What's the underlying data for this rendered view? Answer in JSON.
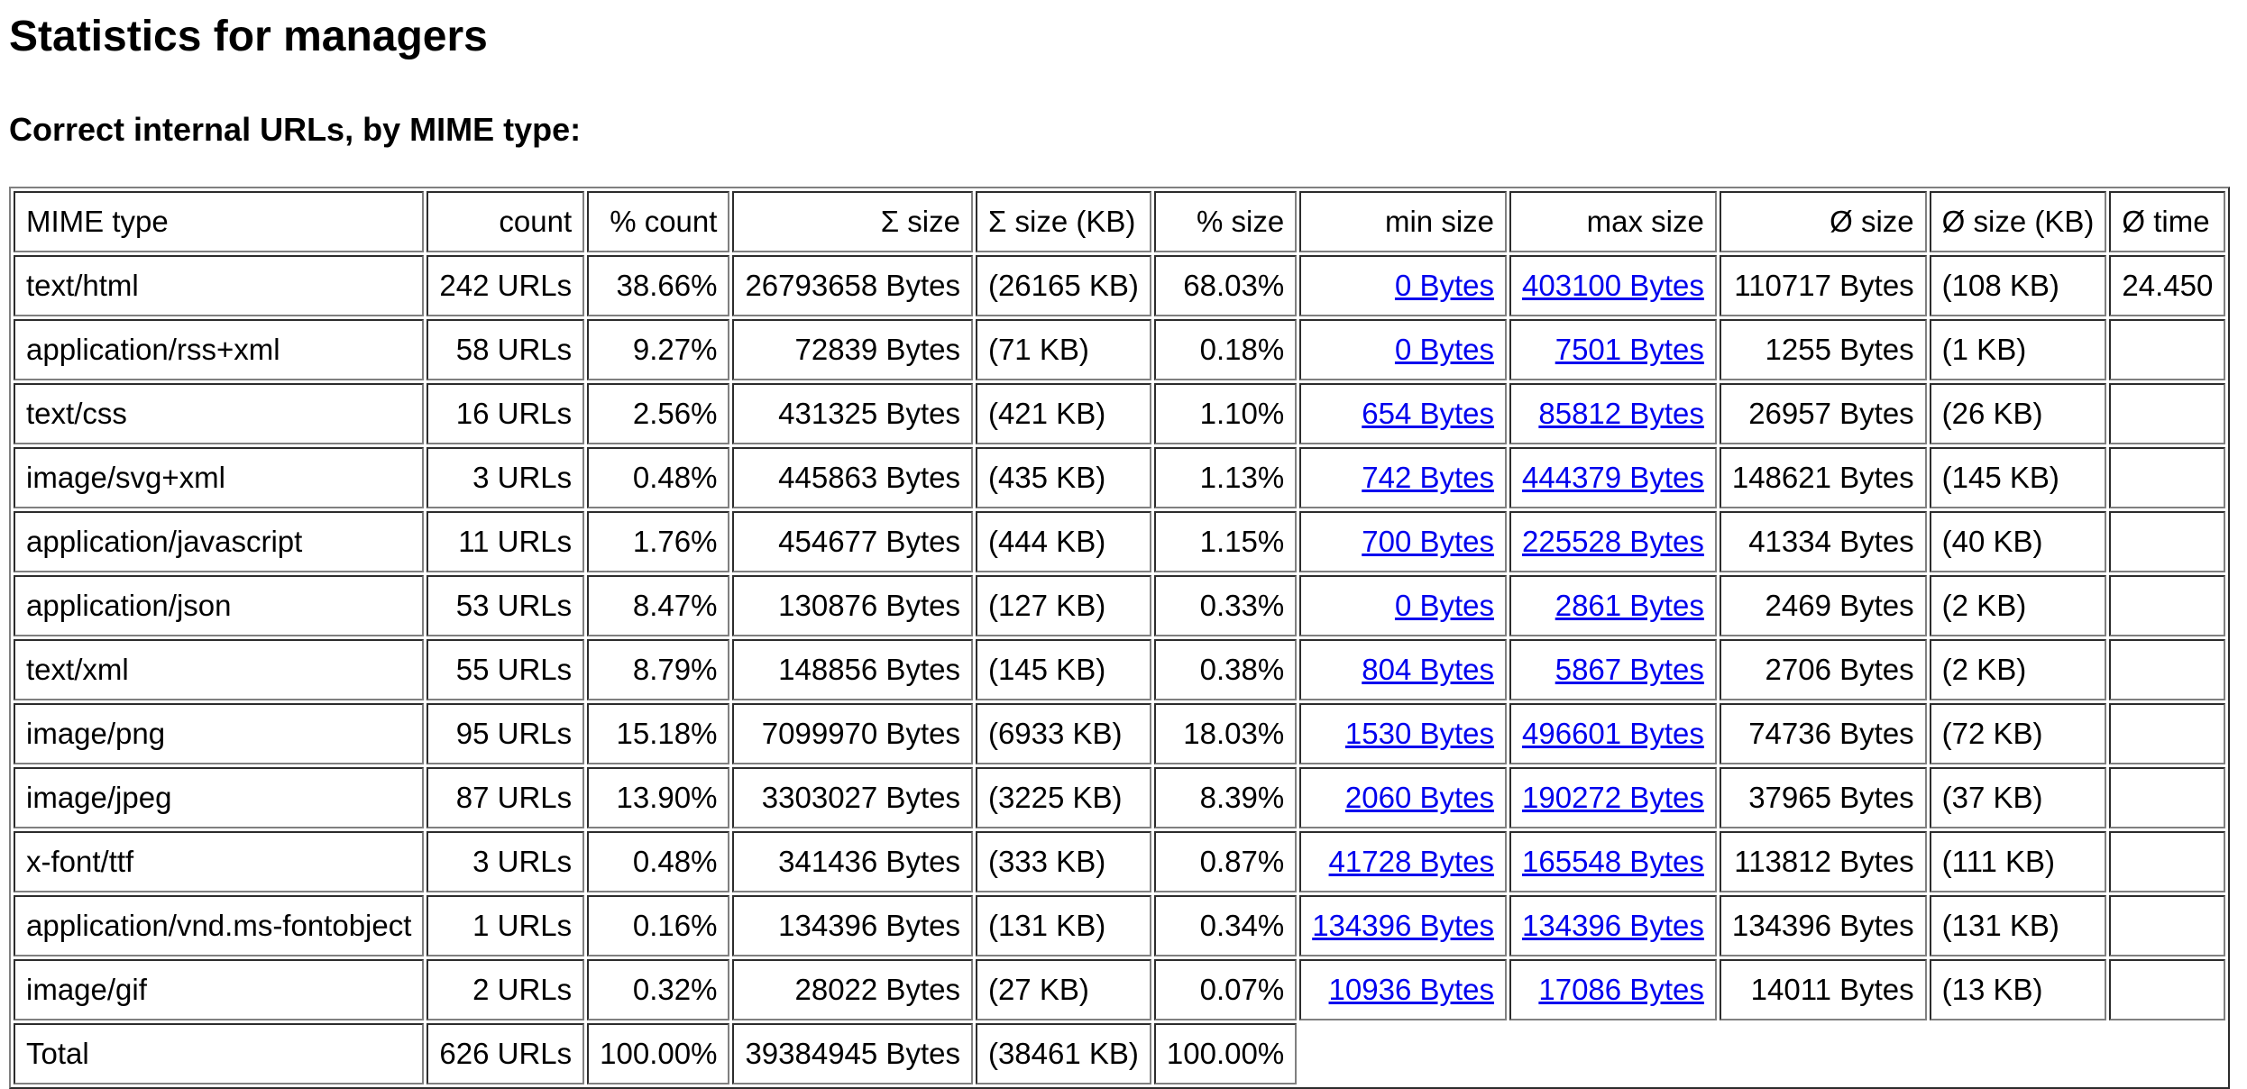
{
  "title": "Statistics for managers",
  "subtitle": "Correct internal URLs, by MIME type:",
  "table": {
    "headers": [
      "MIME type",
      "count",
      "% count",
      "Σ size",
      "Σ size (KB)",
      "% size",
      "min size",
      "max size",
      "Ø size",
      "Ø size (KB)",
      "Ø time"
    ],
    "rows": [
      {
        "mime": "text/html",
        "count": "242 URLs",
        "pct_count": "38.66%",
        "size": "26793658 Bytes",
        "size_kb": "(26165 KB)",
        "pct_size": "68.03%",
        "min": "0 Bytes",
        "max": "403100 Bytes",
        "avg": "110717 Bytes",
        "avg_kb": "(108 KB)",
        "time": "24.450"
      },
      {
        "mime": "application/rss+xml",
        "count": "58 URLs",
        "pct_count": "9.27%",
        "size": "72839 Bytes",
        "size_kb": "(71 KB)",
        "pct_size": "0.18%",
        "min": "0 Bytes",
        "max": "7501 Bytes",
        "avg": "1255 Bytes",
        "avg_kb": "(1 KB)",
        "time": ""
      },
      {
        "mime": "text/css",
        "count": "16 URLs",
        "pct_count": "2.56%",
        "size": "431325 Bytes",
        "size_kb": "(421 KB)",
        "pct_size": "1.10%",
        "min": "654 Bytes",
        "max": "85812 Bytes",
        "avg": "26957 Bytes",
        "avg_kb": "(26 KB)",
        "time": ""
      },
      {
        "mime": "image/svg+xml",
        "count": "3 URLs",
        "pct_count": "0.48%",
        "size": "445863 Bytes",
        "size_kb": "(435 KB)",
        "pct_size": "1.13%",
        "min": "742 Bytes",
        "max": "444379 Bytes",
        "avg": "148621 Bytes",
        "avg_kb": "(145 KB)",
        "time": ""
      },
      {
        "mime": "application/javascript",
        "count": "11 URLs",
        "pct_count": "1.76%",
        "size": "454677 Bytes",
        "size_kb": "(444 KB)",
        "pct_size": "1.15%",
        "min": "700 Bytes",
        "max": "225528 Bytes",
        "avg": "41334 Bytes",
        "avg_kb": "(40 KB)",
        "time": ""
      },
      {
        "mime": "application/json",
        "count": "53 URLs",
        "pct_count": "8.47%",
        "size": "130876 Bytes",
        "size_kb": "(127 KB)",
        "pct_size": "0.33%",
        "min": "0 Bytes",
        "max": "2861 Bytes",
        "avg": "2469 Bytes",
        "avg_kb": "(2 KB)",
        "time": ""
      },
      {
        "mime": "text/xml",
        "count": "55 URLs",
        "pct_count": "8.79%",
        "size": "148856 Bytes",
        "size_kb": "(145 KB)",
        "pct_size": "0.38%",
        "min": "804 Bytes",
        "max": "5867 Bytes",
        "avg": "2706 Bytes",
        "avg_kb": "(2 KB)",
        "time": ""
      },
      {
        "mime": "image/png",
        "count": "95 URLs",
        "pct_count": "15.18%",
        "size": "7099970 Bytes",
        "size_kb": "(6933 KB)",
        "pct_size": "18.03%",
        "min": "1530 Bytes",
        "max": "496601 Bytes",
        "avg": "74736 Bytes",
        "avg_kb": "(72 KB)",
        "time": ""
      },
      {
        "mime": "image/jpeg",
        "count": "87 URLs",
        "pct_count": "13.90%",
        "size": "3303027 Bytes",
        "size_kb": "(3225 KB)",
        "pct_size": "8.39%",
        "min": "2060 Bytes",
        "max": "190272 Bytes",
        "avg": "37965 Bytes",
        "avg_kb": "(37 KB)",
        "time": ""
      },
      {
        "mime": "x-font/ttf",
        "count": "3 URLs",
        "pct_count": "0.48%",
        "size": "341436 Bytes",
        "size_kb": "(333 KB)",
        "pct_size": "0.87%",
        "min": "41728 Bytes",
        "max": "165548 Bytes",
        "avg": "113812 Bytes",
        "avg_kb": "(111 KB)",
        "time": ""
      },
      {
        "mime": "application/vnd.ms-fontobject",
        "count": "1 URLs",
        "pct_count": "0.16%",
        "size": "134396 Bytes",
        "size_kb": "(131 KB)",
        "pct_size": "0.34%",
        "min": "134396 Bytes",
        "max": "134396 Bytes",
        "avg": "134396 Bytes",
        "avg_kb": "(131 KB)",
        "time": ""
      },
      {
        "mime": "image/gif",
        "count": "2 URLs",
        "pct_count": "0.32%",
        "size": "28022 Bytes",
        "size_kb": "(27 KB)",
        "pct_size": "0.07%",
        "min": "10936 Bytes",
        "max": "17086 Bytes",
        "avg": "14011 Bytes",
        "avg_kb": "(13 KB)",
        "time": ""
      }
    ],
    "total": {
      "label": "Total",
      "count": "626 URLs",
      "pct_count": "100.00%",
      "size": "39384945 Bytes",
      "size_kb": "(38461 KB)",
      "pct_size": "100.00%"
    }
  },
  "colors": {
    "link": "#0000ee",
    "border": "#808080",
    "background": "#ffffff"
  }
}
